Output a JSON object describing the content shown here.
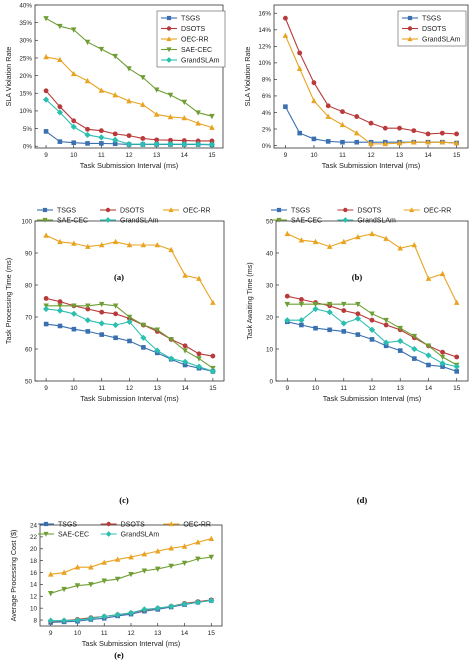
{
  "chart_data": [
    {
      "type": "line",
      "panel": "(a)",
      "xlabel": "Task Submission Interval (ms)",
      "ylabel": "SLA Violation Rate",
      "x": [
        9,
        9.5,
        10,
        10.5,
        11,
        11.5,
        12,
        12.5,
        13,
        13.5,
        14,
        14.5,
        15
      ],
      "xlim": [
        8.6,
        15.4
      ],
      "ylim": [
        -0.5,
        40
      ],
      "xticks": [
        "9",
        "10",
        "11",
        "12",
        "13",
        "14",
        "15"
      ],
      "yticks": [
        "0%",
        "5%",
        "10%",
        "15%",
        "20%",
        "25%",
        "30%",
        "35%",
        "40%"
      ],
      "legend_position": "top-right",
      "legend_cols": 1,
      "series": [
        {
          "name": "TSGS",
          "color": "#3a6fb0",
          "marker": "square",
          "values": [
            4.2,
            1.3,
            1.0,
            0.8,
            0.8,
            0.7,
            0.5,
            0.5,
            0.5,
            0.5,
            0.5,
            0.5,
            0.4
          ]
        },
        {
          "name": "DSOTS",
          "color": "#b83a3a",
          "marker": "circle",
          "values": [
            15.7,
            11.2,
            7.2,
            4.8,
            4.4,
            3.5,
            3.0,
            2.2,
            1.8,
            1.7,
            1.6,
            1.5,
            1.5
          ]
        },
        {
          "name": "OEC-RR",
          "color": "#e8a321",
          "marker": "triangle-up",
          "values": [
            25.3,
            24.5,
            20.5,
            18.5,
            15.8,
            14.5,
            12.8,
            11.8,
            9.0,
            8.3,
            8.0,
            6.5,
            5.3
          ]
        },
        {
          "name": "SAE-CEC",
          "color": "#6f9e35",
          "marker": "triangle-down",
          "values": [
            36.2,
            34.0,
            33.0,
            29.5,
            27.5,
            25.5,
            22.0,
            19.5,
            16.0,
            14.5,
            12.5,
            9.5,
            8.5
          ]
        },
        {
          "name": "GrandSLAm",
          "color": "#2bbfb0",
          "marker": "diamond",
          "values": [
            13.2,
            9.6,
            5.5,
            3.2,
            2.5,
            1.8,
            0.6,
            0.6,
            0.6,
            0.6,
            0.6,
            0.6,
            0.5
          ]
        }
      ]
    },
    {
      "type": "line",
      "panel": "(b)",
      "xlabel": "Task Submission Interval (ms)",
      "ylabel": "SLA Violation Rate",
      "x": [
        9,
        9.5,
        10,
        10.5,
        11,
        11.5,
        12,
        12.5,
        13,
        13.5,
        14,
        14.5,
        15
      ],
      "xlim": [
        8.6,
        15.4
      ],
      "ylim": [
        -0.3,
        17
      ],
      "xticks": [
        "9",
        "10",
        "11",
        "12",
        "13",
        "14",
        "15"
      ],
      "yticks": [
        "0%",
        "2%",
        "4%",
        "6%",
        "8%",
        "10%",
        "12%",
        "14%",
        "16%"
      ],
      "legend_position": "top-right",
      "legend_cols": 1,
      "series": [
        {
          "name": "TSGS",
          "color": "#3a6fb0",
          "marker": "square",
          "values": [
            4.7,
            1.5,
            0.8,
            0.5,
            0.4,
            0.4,
            0.4,
            0.4,
            0.4,
            0.4,
            0.4,
            0.4,
            0.3
          ]
        },
        {
          "name": "DSOTS",
          "color": "#b83a3a",
          "marker": "circle",
          "values": [
            15.4,
            11.2,
            7.6,
            4.8,
            4.1,
            3.5,
            2.7,
            2.1,
            2.1,
            1.8,
            1.4,
            1.5,
            1.4
          ]
        },
        {
          "name": "GrandSLAm",
          "color": "#e8a321",
          "marker": "triangle-up",
          "values": [
            13.3,
            9.3,
            5.4,
            3.5,
            2.5,
            1.5,
            0.2,
            0.2,
            0.3,
            0.4,
            0.4,
            0.4,
            0.3
          ]
        }
      ]
    },
    {
      "type": "line",
      "panel": "(c)",
      "xlabel": "Task Submission Interval (ms)",
      "ylabel": "Task Processing Time (ms)",
      "x": [
        9,
        9.5,
        10,
        10.5,
        11,
        11.5,
        12,
        12.5,
        13,
        13.5,
        14,
        14.5,
        15
      ],
      "xlim": [
        8.6,
        15.4
      ],
      "ylim": [
        50,
        100
      ],
      "xticks": [
        "9",
        "10",
        "11",
        "12",
        "13",
        "14",
        "15"
      ],
      "yticks": [
        "50",
        "60",
        "70",
        "80",
        "90",
        "100"
      ],
      "legend_position": "top",
      "legend_cols": 3,
      "series": [
        {
          "name": "TSGS",
          "color": "#3a6fb0",
          "marker": "square",
          "values": [
            67.8,
            67.2,
            66.2,
            65.5,
            64.5,
            63.5,
            62.5,
            60.5,
            58.8,
            56.8,
            55.0,
            54.0,
            53.0
          ]
        },
        {
          "name": "DSOTS",
          "color": "#b83a3a",
          "marker": "circle",
          "values": [
            75.8,
            74.8,
            73.5,
            72.5,
            71.5,
            71.0,
            69.5,
            67.5,
            65.5,
            63.0,
            61.0,
            58.5,
            57.8
          ]
        },
        {
          "name": "OEC-RR",
          "color": "#e8a321",
          "marker": "triangle-up",
          "values": [
            95.5,
            93.5,
            93.0,
            92.0,
            92.5,
            93.5,
            92.5,
            92.5,
            92.5,
            91.0,
            83.0,
            82.0,
            74.5
          ]
        },
        {
          "name": "SAE-CEC",
          "color": "#6f9e35",
          "marker": "triangle-down",
          "values": [
            73.5,
            73.5,
            73.5,
            73.5,
            74.0,
            73.5,
            70.0,
            67.5,
            66.0,
            63.0,
            59.5,
            57.0,
            54.0
          ]
        },
        {
          "name": "GrandSLAm",
          "color": "#2bbfb0",
          "marker": "diamond",
          "values": [
            72.5,
            72.0,
            71.0,
            69.0,
            68.0,
            67.5,
            68.5,
            63.5,
            59.5,
            57.0,
            56.0,
            54.5,
            53.0
          ]
        }
      ]
    },
    {
      "type": "line",
      "panel": "(d)",
      "xlabel": "Task Submission Interval (ms)",
      "ylabel": "Task Awaiting Time (ms)",
      "x": [
        9,
        9.5,
        10,
        10.5,
        11,
        11.5,
        12,
        12.5,
        13,
        13.5,
        14,
        14.5,
        15
      ],
      "xlim": [
        8.6,
        15.4
      ],
      "ylim": [
        0,
        50
      ],
      "xticks": [
        "9",
        "10",
        "11",
        "12",
        "13",
        "14",
        "15"
      ],
      "yticks": [
        "0",
        "10",
        "20",
        "30",
        "40",
        "50"
      ],
      "legend_position": "top",
      "legend_cols": 3,
      "series": [
        {
          "name": "TSGS",
          "color": "#3a6fb0",
          "marker": "square",
          "values": [
            18.5,
            17.5,
            16.5,
            16.0,
            15.5,
            14.5,
            13.0,
            11.0,
            9.5,
            7.0,
            5.0,
            4.5,
            3.0
          ]
        },
        {
          "name": "DSOTS",
          "color": "#b83a3a",
          "marker": "circle",
          "values": [
            26.5,
            25.5,
            24.5,
            23.5,
            22.0,
            21.0,
            19.0,
            17.5,
            16.0,
            13.5,
            11.0,
            9.0,
            7.5
          ]
        },
        {
          "name": "OEC-RR",
          "color": "#e8a321",
          "marker": "triangle-up",
          "values": [
            46.0,
            44.0,
            43.5,
            42.0,
            43.5,
            45.0,
            46.0,
            44.5,
            41.5,
            42.5,
            32.0,
            33.5,
            24.5
          ]
        },
        {
          "name": "SAE-CEC",
          "color": "#6f9e35",
          "marker": "triangle-down",
          "values": [
            24.0,
            24.0,
            24.0,
            24.0,
            24.0,
            24.0,
            21.0,
            19.0,
            16.5,
            14.0,
            11.0,
            7.5,
            5.0
          ]
        },
        {
          "name": "GrandSLAm",
          "color": "#2bbfb0",
          "marker": "diamond",
          "values": [
            19.0,
            19.0,
            22.5,
            21.5,
            18.0,
            19.5,
            16.0,
            12.0,
            12.5,
            10.0,
            8.0,
            5.5,
            4.5
          ]
        }
      ]
    },
    {
      "type": "line",
      "panel": "(e)",
      "xlabel": "Task Submission Interval (ms)",
      "ylabel": "Average Processing Cost ($)",
      "x": [
        9,
        9.5,
        10,
        10.5,
        11,
        11.5,
        12,
        12.5,
        13,
        13.5,
        14,
        14.5,
        15
      ],
      "xlim": [
        8.6,
        15.4
      ],
      "ylim": [
        7,
        24
      ],
      "xticks": [
        "9",
        "10",
        "11",
        "12",
        "13",
        "14",
        "15"
      ],
      "yticks": [
        "8",
        "10",
        "12",
        "14",
        "16",
        "18",
        "20",
        "22",
        "24"
      ],
      "legend_position": "top",
      "legend_cols": 3,
      "series": [
        {
          "name": "TSGS",
          "color": "#3a6fb0",
          "marker": "square",
          "values": [
            7.6,
            7.7,
            7.8,
            8.1,
            8.3,
            8.7,
            9.0,
            9.5,
            9.8,
            10.2,
            10.6,
            11.0,
            11.3
          ]
        },
        {
          "name": "DSOTS",
          "color": "#b83a3a",
          "marker": "circle",
          "values": [
            7.8,
            7.9,
            8.1,
            8.4,
            8.6,
            8.9,
            9.2,
            9.7,
            10.0,
            10.3,
            10.8,
            11.1,
            11.4
          ]
        },
        {
          "name": "OEC-RR",
          "color": "#e8a321",
          "marker": "triangle-up",
          "values": [
            15.7,
            16.0,
            16.9,
            16.9,
            17.7,
            18.2,
            18.6,
            19.1,
            19.6,
            20.1,
            20.4,
            21.1,
            21.7
          ]
        },
        {
          "name": "SAE-CEC",
          "color": "#6f9e35",
          "marker": "triangle-down",
          "values": [
            12.5,
            13.2,
            13.8,
            14.0,
            14.6,
            14.9,
            15.7,
            16.3,
            16.6,
            17.1,
            17.6,
            18.3,
            18.6
          ]
        },
        {
          "name": "GrandSLAm",
          "color": "#2bbfb0",
          "marker": "diamond",
          "values": [
            7.9,
            7.9,
            8.0,
            8.3,
            8.6,
            8.9,
            9.2,
            9.8,
            10.0,
            10.3,
            10.7,
            11.0,
            11.3
          ]
        }
      ]
    }
  ]
}
